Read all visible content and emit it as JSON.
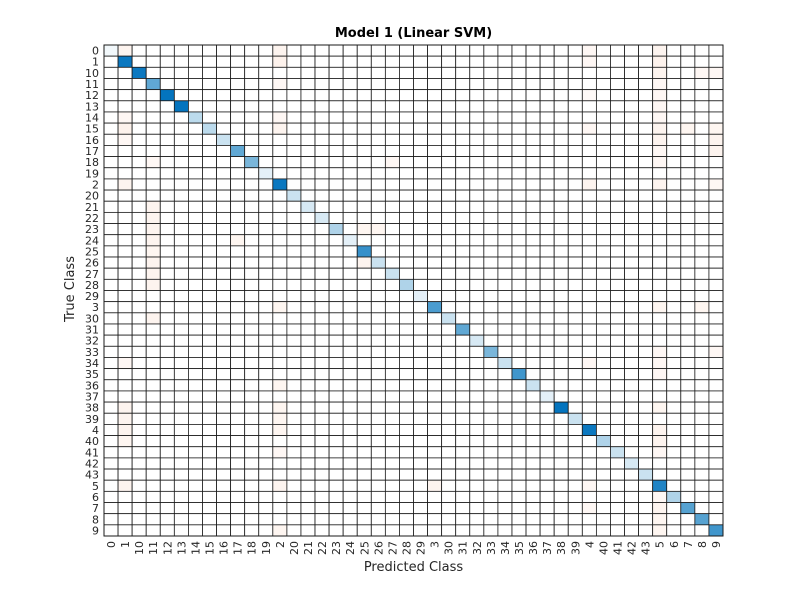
{
  "chart_data": {
    "type": "heatmap",
    "title": "Model 1 (Linear SVM)",
    "xlabel": "Predicted Class",
    "ylabel": "True Class",
    "categories": [
      "0",
      "1",
      "10",
      "11",
      "12",
      "13",
      "14",
      "15",
      "16",
      "17",
      "18",
      "19",
      "2",
      "20",
      "21",
      "22",
      "23",
      "24",
      "25",
      "26",
      "27",
      "28",
      "29",
      "3",
      "30",
      "31",
      "32",
      "33",
      "34",
      "35",
      "36",
      "37",
      "38",
      "39",
      "4",
      "40",
      "41",
      "42",
      "43",
      "5",
      "6",
      "7",
      "8",
      "9"
    ],
    "colormap": {
      "low": "#ffffff",
      "mid": "#6baed6",
      "high": "#0072bd",
      "off_diagonal": "#f9d9c8"
    },
    "diagonal_intensity": [
      0.05,
      0.95,
      0.95,
      0.55,
      0.98,
      0.98,
      0.25,
      0.25,
      0.2,
      0.55,
      0.5,
      0.1,
      0.95,
      0.2,
      0.15,
      0.15,
      0.3,
      0.1,
      0.75,
      0.2,
      0.2,
      0.3,
      0.1,
      0.65,
      0.2,
      0.55,
      0.15,
      0.5,
      0.2,
      0.7,
      0.2,
      0.1,
      0.98,
      0.2,
      0.95,
      0.3,
      0.2,
      0.15,
      0.2,
      0.85,
      0.3,
      0.6,
      0.6,
      0.7
    ],
    "off_diagonal_cells": [
      [
        0,
        1,
        0.3
      ],
      [
        0,
        12,
        0.3
      ],
      [
        0,
        39,
        0.3
      ],
      [
        0,
        34,
        0.2
      ],
      [
        1,
        12,
        0.35
      ],
      [
        1,
        39,
        0.35
      ],
      [
        1,
        34,
        0.2
      ],
      [
        2,
        39,
        0.3
      ],
      [
        2,
        42,
        0.2
      ],
      [
        2,
        43,
        0.2
      ],
      [
        3,
        12,
        0.2
      ],
      [
        3,
        39,
        0.2
      ],
      [
        4,
        39,
        0.2
      ],
      [
        4,
        34,
        0.15
      ],
      [
        5,
        39,
        0.2
      ],
      [
        6,
        1,
        0.2
      ],
      [
        6,
        12,
        0.2
      ],
      [
        6,
        39,
        0.2
      ],
      [
        7,
        1,
        0.35
      ],
      [
        7,
        12,
        0.3
      ],
      [
        7,
        39,
        0.3
      ],
      [
        7,
        43,
        0.25
      ],
      [
        7,
        34,
        0.2
      ],
      [
        7,
        41,
        0.25
      ],
      [
        8,
        1,
        0.2
      ],
      [
        8,
        39,
        0.3
      ],
      [
        8,
        43,
        0.3
      ],
      [
        9,
        39,
        0.2
      ],
      [
        9,
        43,
        0.3
      ],
      [
        10,
        3,
        0.2
      ],
      [
        10,
        20,
        0.2
      ],
      [
        10,
        39,
        0.2
      ],
      [
        12,
        1,
        0.3
      ],
      [
        12,
        12,
        0.0
      ],
      [
        12,
        34,
        0.3
      ],
      [
        12,
        39,
        0.3
      ],
      [
        12,
        43,
        0.2
      ],
      [
        14,
        3,
        0.3
      ],
      [
        15,
        3,
        0.3
      ],
      [
        16,
        3,
        0.3
      ],
      [
        17,
        3,
        0.3
      ],
      [
        18,
        3,
        0.25
      ],
      [
        19,
        3,
        0.3
      ],
      [
        20,
        3,
        0.3
      ],
      [
        21,
        3,
        0.3
      ],
      [
        16,
        18,
        0.25
      ],
      [
        16,
        19,
        0.25
      ],
      [
        17,
        9,
        0.25
      ],
      [
        19,
        18,
        0.3
      ],
      [
        23,
        12,
        0.25
      ],
      [
        23,
        39,
        0.25
      ],
      [
        23,
        42,
        0.25
      ],
      [
        24,
        3,
        0.3
      ],
      [
        27,
        39,
        0.2
      ],
      [
        27,
        43,
        0.2
      ],
      [
        28,
        1,
        0.2
      ],
      [
        28,
        39,
        0.2
      ],
      [
        28,
        34,
        0.2
      ],
      [
        29,
        39,
        0.2
      ],
      [
        30,
        12,
        0.25
      ],
      [
        32,
        1,
        0.3
      ],
      [
        32,
        12,
        0.25
      ],
      [
        32,
        39,
        0.25
      ],
      [
        33,
        1,
        0.3
      ],
      [
        33,
        12,
        0.25
      ],
      [
        34,
        1,
        0.3
      ],
      [
        34,
        12,
        0.25
      ],
      [
        34,
        39,
        0.3
      ],
      [
        35,
        1,
        0.25
      ],
      [
        35,
        39,
        0.3
      ],
      [
        36,
        12,
        0.2
      ],
      [
        36,
        39,
        0.2
      ],
      [
        39,
        1,
        0.3
      ],
      [
        39,
        12,
        0.3
      ],
      [
        39,
        23,
        0.3
      ],
      [
        39,
        34,
        0.2
      ],
      [
        40,
        39,
        0.2
      ],
      [
        41,
        39,
        0.3
      ],
      [
        41,
        34,
        0.2
      ],
      [
        42,
        39,
        0.25
      ],
      [
        43,
        12,
        0.25
      ],
      [
        43,
        39,
        0.25
      ]
    ]
  }
}
